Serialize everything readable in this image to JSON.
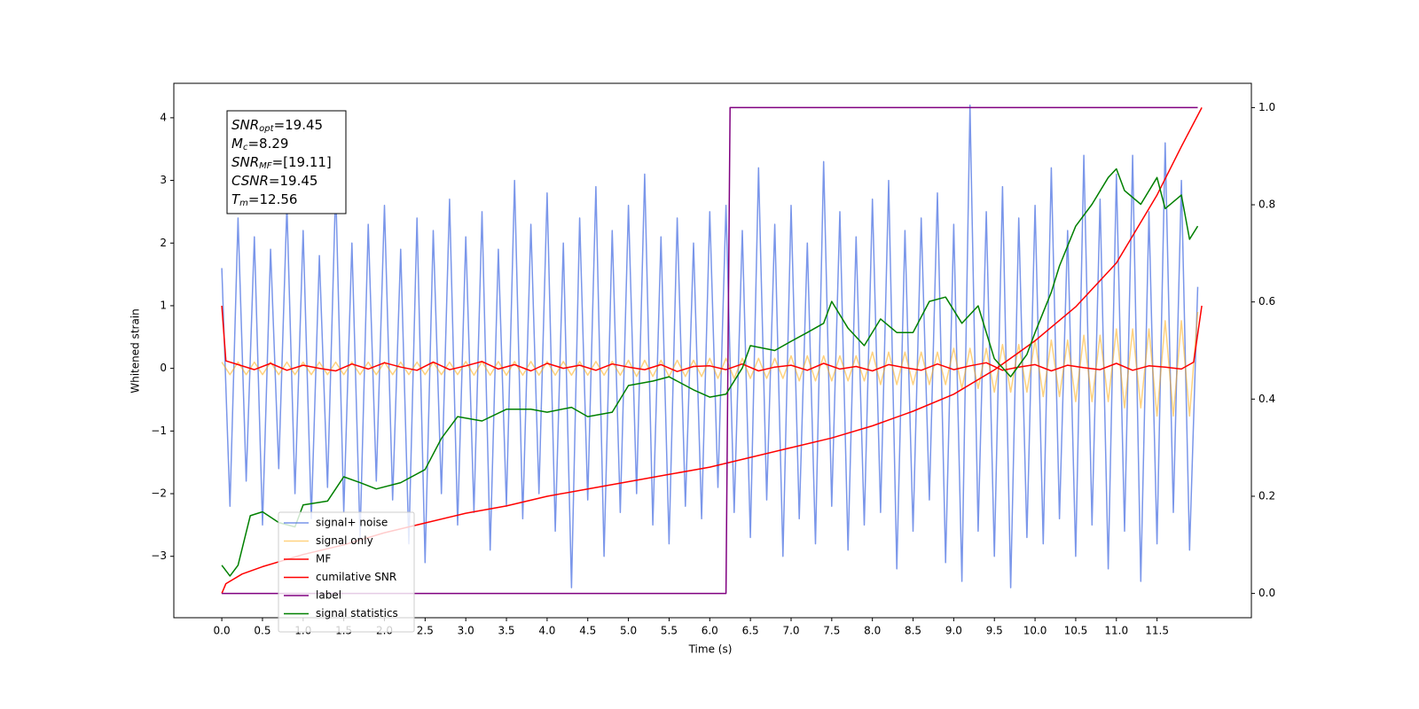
{
  "chart_data": {
    "type": "line",
    "xlabel": "Time (s)",
    "ylabel": "Whitened strain",
    "xlim": [
      -0.59,
      12.66
    ],
    "ylim": [
      -3.98,
      4.55
    ],
    "y2lim": [
      -0.05,
      1.05
    ],
    "xticks": [
      {
        "value": 0,
        "label": "0.0"
      },
      0.5,
      {
        "value": 1,
        "label": "1.0"
      },
      1.5,
      {
        "value": 2,
        "label": "2.0"
      },
      2.5,
      {
        "value": 3,
        "label": "3.0"
      },
      3.5,
      {
        "value": 4,
        "label": "4.0"
      },
      4.5,
      {
        "value": 5,
        "label": "5.0"
      },
      5.5,
      {
        "value": 6,
        "label": "6.0"
      },
      6.5,
      {
        "value": 7,
        "label": "7.0"
      },
      7.5,
      {
        "value": 8,
        "label": "8.0"
      },
      8.5,
      {
        "value": 9,
        "label": "9.0"
      },
      9.5,
      {
        "value": 10,
        "label": "10.0"
      },
      10.5,
      {
        "value": 11,
        "label": "11.0"
      },
      11.5
    ],
    "yticks": [
      {
        "value": -3,
        "label": "−3"
      },
      {
        "value": -2,
        "label": "−2"
      },
      {
        "value": -1,
        "label": "−1"
      },
      0,
      1,
      2,
      3,
      4
    ],
    "y2ticks": [
      {
        "value": 0,
        "label": "0.0"
      },
      0.2,
      0.4,
      0.6,
      0.8,
      {
        "value": 1,
        "label": "1.0"
      }
    ],
    "grid": false,
    "legend": "lower left",
    "annotations": [
      {
        "symbol": "SNR",
        "subscript": "opt",
        "text": "=19.45"
      },
      {
        "symbol": "M",
        "subscript": "c",
        "text": "=8.29"
      },
      {
        "symbol": "SNR",
        "subscript": "MF",
        "text": "=[19.11]"
      },
      {
        "symbol": "CSNR",
        "text": "=19.45"
      },
      {
        "symbol": "T",
        "subscript": "m",
        "text": "=12.56"
      }
    ],
    "x": [
      0,
      0.1,
      0.2,
      0.3,
      0.4,
      0.5,
      0.6,
      0.7,
      0.8,
      0.9,
      1,
      1.1,
      1.2,
      1.3,
      1.4,
      1.5,
      1.6,
      1.7,
      1.8,
      1.9,
      2,
      2.1,
      2.2,
      2.3,
      2.4,
      2.5,
      2.6,
      2.7,
      2.8,
      2.9,
      3,
      3.1,
      3.2,
      3.3,
      3.4,
      3.5,
      3.6,
      3.7,
      3.8,
      3.9,
      4,
      4.1,
      4.2,
      4.3,
      4.4,
      4.5,
      4.6,
      4.7,
      4.8,
      4.9,
      5,
      5.1,
      5.2,
      5.3,
      5.4,
      5.5,
      5.6,
      5.7,
      5.8,
      5.9,
      6,
      6.1,
      6.2,
      6.3,
      6.4,
      6.5,
      6.6,
      6.7,
      6.8,
      6.9,
      7,
      7.1,
      7.2,
      7.3,
      7.4,
      7.5,
      7.6,
      7.7,
      7.8,
      7.9,
      8,
      8.1,
      8.2,
      8.3,
      8.4,
      8.5,
      8.6,
      8.7,
      8.8,
      8.9,
      9,
      9.1,
      9.2,
      9.3,
      9.4,
      9.5,
      9.6,
      9.7,
      9.8,
      9.9,
      10,
      10.1,
      10.2,
      10.3,
      10.4,
      10.5,
      10.6,
      10.7,
      10.8,
      10.9,
      11,
      11.1,
      11.2,
      11.3,
      11.4,
      11.5,
      11.6,
      11.7,
      11.8,
      11.9,
      12
    ],
    "series": [
      {
        "name": "signal+ noise",
        "color": "#4169e1",
        "alpha": 0.7,
        "values": [
          1.6,
          -2.2,
          2.4,
          -1.8,
          2.1,
          -2.5,
          1.9,
          -1.6,
          2.6,
          -2.0,
          2.2,
          -2.4,
          1.8,
          -1.9,
          2.9,
          -2.3,
          2.0,
          -2.7,
          2.3,
          -1.8,
          2.6,
          -2.1,
          1.9,
          -2.8,
          2.4,
          -3.1,
          2.2,
          -2.0,
          2.7,
          -2.5,
          2.1,
          -2.3,
          2.5,
          -2.9,
          1.9,
          -2.2,
          3.0,
          -2.4,
          2.3,
          -2.0,
          2.8,
          -2.6,
          2.0,
          -3.5,
          2.4,
          -2.1,
          2.9,
          -3.0,
          2.2,
          -2.3,
          2.6,
          -2.0,
          3.1,
          -2.5,
          2.1,
          -2.8,
          2.4,
          -2.2,
          2.0,
          -2.4,
          2.5,
          -1.9,
          2.6,
          -2.3,
          2.2,
          -2.7,
          3.2,
          -2.1,
          2.3,
          -3.0,
          2.6,
          -2.4,
          2.0,
          -2.8,
          3.3,
          -2.2,
          2.5,
          -2.9,
          2.1,
          -2.5,
          2.7,
          -2.3,
          3.0,
          -3.2,
          2.2,
          -2.6,
          2.4,
          -2.1,
          2.8,
          -3.1,
          2.3,
          -3.4,
          4.2,
          -2.6,
          2.5,
          -3.0,
          2.9,
          -3.5,
          2.4,
          -2.7,
          2.6,
          -2.8,
          3.2,
          -2.4,
          2.2,
          -3.0,
          3.4,
          -2.5,
          2.7,
          -3.2,
          3.1,
          -2.6,
          3.4,
          -3.4,
          2.5,
          -2.8,
          3.6,
          -2.3,
          3.0,
          -2.9,
          1.3
        ]
      },
      {
        "name": "signal only",
        "color": "#ffa500",
        "alpha": 0.5,
        "values": [
          0.1,
          -0.1,
          0.1,
          -0.1,
          0.1,
          -0.1,
          0.1,
          -0.1,
          0.1,
          -0.1,
          0.1,
          -0.1,
          0.1,
          -0.1,
          0.1,
          -0.1,
          0.1,
          -0.1,
          0.1,
          -0.1,
          0.1,
          -0.1,
          0.1,
          -0.1,
          0.1,
          -0.1,
          0.1,
          -0.1,
          0.1,
          -0.1,
          0.11,
          -0.11,
          0.11,
          -0.11,
          0.11,
          -0.11,
          0.11,
          -0.11,
          0.11,
          -0.11,
          0.11,
          -0.11,
          0.11,
          -0.11,
          0.11,
          -0.11,
          0.11,
          -0.11,
          0.11,
          -0.11,
          0.13,
          -0.13,
          0.13,
          -0.13,
          0.13,
          -0.13,
          0.13,
          -0.13,
          0.13,
          -0.13,
          0.16,
          -0.16,
          0.16,
          -0.16,
          0.16,
          -0.16,
          0.16,
          -0.16,
          0.16,
          -0.16,
          0.2,
          -0.2,
          0.2,
          -0.2,
          0.2,
          -0.2,
          0.2,
          -0.2,
          0.2,
          -0.2,
          0.26,
          -0.26,
          0.26,
          -0.26,
          0.26,
          -0.26,
          0.26,
          -0.26,
          0.26,
          -0.26,
          0.32,
          -0.32,
          0.32,
          -0.32,
          0.32,
          -0.38,
          0.38,
          -0.38,
          0.38,
          -0.38,
          0.45,
          -0.45,
          0.45,
          -0.45,
          0.45,
          -0.53,
          0.53,
          -0.53,
          0.53,
          -0.53,
          0.63,
          -0.63,
          0.63,
          -0.63,
          0.63,
          -0.76,
          0.76,
          -0.76,
          0.76,
          -0.76,
          0.9
        ]
      },
      {
        "name": "MF",
        "color": "#ff0000",
        "x": [
          0,
          0.05,
          0.2,
          0.4,
          0.6,
          0.8,
          1,
          1.2,
          1.4,
          1.6,
          1.8,
          2,
          2.2,
          2.4,
          2.6,
          2.8,
          3,
          3.2,
          3.4,
          3.6,
          3.8,
          4,
          4.2,
          4.4,
          4.6,
          4.8,
          5,
          5.2,
          5.4,
          5.6,
          5.8,
          6,
          6.2,
          6.4,
          6.6,
          6.8,
          7,
          7.2,
          7.4,
          7.6,
          7.8,
          8,
          8.2,
          8.4,
          8.6,
          8.8,
          9,
          9.2,
          9.4,
          9.6,
          9.8,
          10,
          10.2,
          10.4,
          10.6,
          10.8,
          11,
          11.2,
          11.4,
          11.6,
          11.8,
          11.95,
          12.05
        ],
        "values": [
          1.0,
          0.12,
          0.06,
          -0.02,
          0.08,
          -0.03,
          0.05,
          0.0,
          -0.04,
          0.07,
          -0.01,
          0.09,
          0.02,
          -0.03,
          0.1,
          -0.02,
          0.04,
          0.11,
          -0.01,
          0.06,
          -0.04,
          0.08,
          0.0,
          0.05,
          -0.03,
          0.07,
          0.02,
          -0.02,
          0.06,
          -0.05,
          0.03,
          0.04,
          -0.02,
          0.07,
          -0.04,
          0.02,
          0.05,
          -0.03,
          0.08,
          -0.01,
          0.03,
          -0.04,
          0.06,
          0.01,
          -0.03,
          0.07,
          -0.02,
          0.04,
          0.09,
          -0.03,
          0.02,
          0.06,
          -0.04,
          0.05,
          0.01,
          -0.02,
          0.08,
          -0.03,
          0.04,
          0.02,
          -0.01,
          0.1,
          1.0
        ]
      },
      {
        "name": "cumilative SNR",
        "color": "#ff0000",
        "axis": "y2",
        "x": [
          0,
          0.05,
          0.25,
          0.5,
          1,
          1.5,
          2,
          2.5,
          3,
          3.5,
          4,
          4.5,
          5,
          5.5,
          6,
          6.5,
          7,
          7.5,
          8,
          8.5,
          9,
          9.5,
          10,
          10.5,
          11,
          11.5,
          11.8,
          12.05
        ],
        "values": [
          0.0,
          0.02,
          0.04,
          0.055,
          0.08,
          0.1,
          0.125,
          0.145,
          0.165,
          0.18,
          0.2,
          0.215,
          0.23,
          0.245,
          0.26,
          0.28,
          0.3,
          0.32,
          0.345,
          0.375,
          0.41,
          0.46,
          0.52,
          0.59,
          0.68,
          0.82,
          0.92,
          1.0
        ]
      },
      {
        "name": "label",
        "color": "#800080",
        "axis": "y2",
        "x": [
          0,
          6.2,
          6.25,
          12.0
        ],
        "values": [
          0,
          0,
          1,
          1
        ]
      },
      {
        "name": "signal statistics",
        "color": "#008000",
        "axis": "y2",
        "x": [
          0,
          0.1,
          0.2,
          0.35,
          0.5,
          0.7,
          0.9,
          1.0,
          1.3,
          1.5,
          1.7,
          1.9,
          2.2,
          2.5,
          2.7,
          2.9,
          3.2,
          3.5,
          3.8,
          4.0,
          4.3,
          4.5,
          4.8,
          5.0,
          5.3,
          5.5,
          5.8,
          6.0,
          6.2,
          6.4,
          6.5,
          6.8,
          7.0,
          7.2,
          7.4,
          7.5,
          7.7,
          7.9,
          8.1,
          8.3,
          8.5,
          8.7,
          8.9,
          9.1,
          9.3,
          9.5,
          9.7,
          9.9,
          10.0,
          10.2,
          10.3,
          10.5,
          10.7,
          10.9,
          11.0,
          11.1,
          11.3,
          11.5,
          11.6,
          11.8,
          11.9,
          12.0
        ],
        "values": [
          0.058,
          0.036,
          0.058,
          0.16,
          0.168,
          0.146,
          0.137,
          0.182,
          0.19,
          0.24,
          0.228,
          0.215,
          0.228,
          0.255,
          0.319,
          0.364,
          0.355,
          0.379,
          0.379,
          0.373,
          0.383,
          0.364,
          0.373,
          0.428,
          0.437,
          0.446,
          0.419,
          0.404,
          0.41,
          0.464,
          0.51,
          0.5,
          0.519,
          0.537,
          0.556,
          0.601,
          0.546,
          0.51,
          0.565,
          0.537,
          0.537,
          0.601,
          0.61,
          0.556,
          0.592,
          0.483,
          0.446,
          0.492,
          0.537,
          0.62,
          0.674,
          0.756,
          0.801,
          0.856,
          0.874,
          0.829,
          0.801,
          0.856,
          0.792,
          0.82,
          0.729,
          0.756
        ]
      }
    ]
  }
}
